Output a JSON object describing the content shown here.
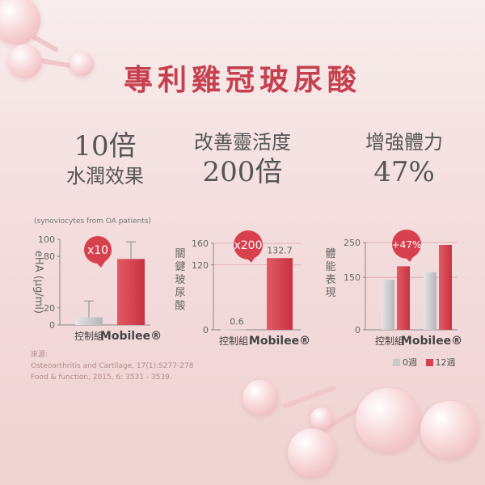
{
  "title": "專利雞冠玻尿酸",
  "stats": [
    {
      "lines": [
        "10倍",
        "水潤效果"
      ]
    },
    {
      "lines": [
        "改善靈活度",
        "200倍"
      ]
    },
    {
      "lines": [
        "增強體力",
        "47%"
      ]
    }
  ],
  "sources": {
    "label": "來源:",
    "items": [
      "Osteoarthritis and Cartilage, 17(1):S277-278",
      "Food & function, 2015, 6: 3531 - 3539."
    ]
  },
  "colors": {
    "control": "#c8c8c8",
    "mobilee": "#d8404e",
    "badge": "#d8404e",
    "grid": "#d9a3a6"
  },
  "chart_data": [
    {
      "type": "bar",
      "subtitle": "(synoviocytes from OA patients)",
      "ylabel": "eHA (μg/ml)",
      "categories": [
        "控制組",
        "Mobilee®"
      ],
      "values": [
        9,
        77
      ],
      "error_upper": [
        28,
        97
      ],
      "ylim": [
        0,
        100
      ],
      "yticks": [
        0,
        20,
        80,
        100
      ],
      "badge": "x10"
    },
    {
      "type": "bar",
      "ylabel": "關鍵玻尿酸",
      "categories": [
        "控制組",
        "Mobilee®"
      ],
      "values": [
        0.6,
        132.7
      ],
      "data_labels": [
        "0.6",
        "132.7"
      ],
      "ylim": [
        0,
        160
      ],
      "yticks": [
        0,
        120,
        160
      ],
      "badge": "x200"
    },
    {
      "type": "bar",
      "ylabel": "體能表現",
      "categories": [
        "控制組",
        "Mobilee®"
      ],
      "series": [
        {
          "name": "0週",
          "values": [
            143,
            165
          ]
        },
        {
          "name": "12週",
          "values": [
            182,
            243
          ]
        }
      ],
      "ylim": [
        0,
        250
      ],
      "yticks": [
        0,
        150,
        250
      ],
      "badge": "+47%"
    }
  ]
}
